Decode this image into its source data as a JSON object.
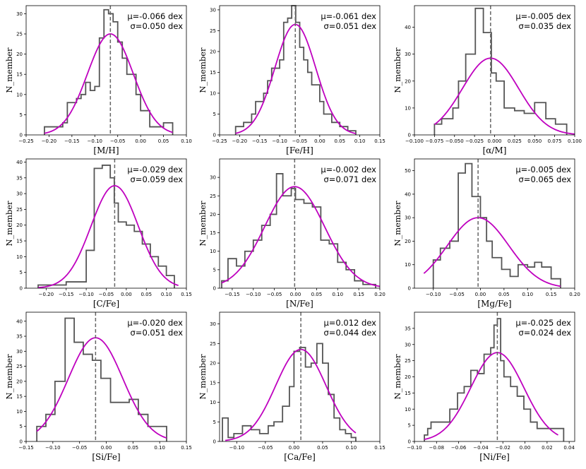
{
  "styles": {
    "hist_color": "#555555",
    "fit_color": "#bf00bf",
    "median_line_color": "#666666"
  },
  "chart_data": [
    {
      "type": "histogram",
      "xlabel": "[M/H]",
      "ylabel": "N_member",
      "mu_text": "μ=-0.066 dex",
      "sigma_text": "σ=0.050 dex",
      "xlim": [
        -0.25,
        0.1
      ],
      "ylim": [
        0,
        32
      ],
      "xticks": [
        -0.25,
        -0.2,
        -0.15,
        -0.1,
        -0.05,
        0.0,
        0.05,
        0.1
      ],
      "xtick_labels": [
        "−0.25",
        "−0.20",
        "−0.15",
        "−0.10",
        "−0.05",
        "0.00",
        "0.05",
        "0.10"
      ],
      "yticks": [
        0,
        5,
        10,
        15,
        20,
        25,
        30
      ],
      "bin_edges": [
        -0.21,
        -0.19,
        -0.17,
        -0.16,
        -0.14,
        -0.13,
        -0.12,
        -0.11,
        -0.1,
        -0.09,
        -0.08,
        -0.07,
        -0.06,
        -0.05,
        -0.04,
        -0.03,
        -0.02,
        -0.01,
        0.0,
        0.02,
        0.03,
        0.05,
        0.07
      ],
      "counts": [
        2,
        2,
        3,
        8,
        9,
        10,
        13,
        11,
        12,
        24,
        31,
        30,
        28,
        23,
        19,
        15,
        15,
        10,
        6,
        2,
        2,
        3
      ],
      "vline": -0.066,
      "gauss": {
        "mu": -0.066,
        "sigma": 0.05,
        "peak": 25.0,
        "xrange": [
          -0.21,
          0.07
        ]
      }
    },
    {
      "type": "histogram",
      "xlabel": "[Fe/H]",
      "ylabel": "N_member",
      "mu_text": "μ=-0.061 dex",
      "sigma_text": "σ=0.051 dex",
      "xlim": [
        -0.25,
        0.15
      ],
      "ylim": [
        0,
        31
      ],
      "xticks": [
        -0.25,
        -0.2,
        -0.15,
        -0.1,
        -0.05,
        0.0,
        0.05,
        0.1,
        0.15
      ],
      "xtick_labels": [
        "−0.25",
        "−0.20",
        "−0.15",
        "−0.10",
        "−0.05",
        "0.00",
        "0.05",
        "0.10",
        "0.15"
      ],
      "yticks": [
        0,
        5,
        10,
        15,
        20,
        25,
        30
      ],
      "bin_edges": [
        -0.21,
        -0.19,
        -0.17,
        -0.16,
        -0.14,
        -0.13,
        -0.12,
        -0.1,
        -0.09,
        -0.08,
        -0.07,
        -0.06,
        -0.05,
        -0.04,
        -0.03,
        -0.02,
        0.0,
        0.01,
        0.03,
        0.05,
        0.07,
        0.09
      ],
      "counts": [
        2,
        3,
        5,
        8,
        10,
        13,
        16,
        18,
        27,
        28,
        31,
        27,
        21,
        18,
        15,
        12,
        8,
        5,
        3,
        2,
        1
      ],
      "vline": -0.061,
      "gauss": {
        "mu": -0.061,
        "sigma": 0.051,
        "peak": 26.5,
        "xrange": [
          -0.21,
          0.09
        ]
      }
    },
    {
      "type": "histogram",
      "xlabel": "[α/M]",
      "ylabel": "N_member",
      "mu_text": "μ=-0.005 dex",
      "sigma_text": "σ=0.035 dex",
      "xlim": [
        -0.1,
        0.1
      ],
      "ylim": [
        0,
        48
      ],
      "xticks": [
        -0.1,
        -0.075,
        -0.05,
        -0.025,
        0.0,
        0.025,
        0.05,
        0.075,
        0.1
      ],
      "xtick_labels": [
        "−0.100",
        "−0.075",
        "−0.050",
        "−0.025",
        "0.000",
        "0.025",
        "0.050",
        "0.075",
        "0.100"
      ],
      "yticks": [
        0,
        10,
        20,
        30,
        40
      ],
      "bin_edges": [
        -0.075,
        -0.066,
        -0.052,
        -0.045,
        -0.036,
        -0.024,
        -0.014,
        -0.004,
        0.002,
        0.012,
        0.025,
        0.037,
        0.05,
        0.064,
        0.076,
        0.09
      ],
      "counts": [
        4,
        6,
        10,
        20,
        30,
        47,
        38,
        23,
        20,
        10,
        9,
        8,
        12,
        6,
        4
      ],
      "vline": -0.005,
      "gauss": {
        "mu": -0.005,
        "sigma": 0.035,
        "peak": 28.5,
        "xrange": [
          -0.075,
          0.1
        ]
      }
    },
    {
      "type": "histogram",
      "xlabel": "[C/Fe]",
      "ylabel": "N_member",
      "mu_text": "μ=-0.029 dex",
      "sigma_text": "σ=0.059 dex",
      "xlim": [
        -0.25,
        0.15
      ],
      "ylim": [
        0,
        41
      ],
      "xticks": [
        -0.2,
        -0.15,
        -0.1,
        -0.05,
        0.0,
        0.05,
        0.1,
        0.15
      ],
      "xtick_labels": [
        "−0.20",
        "−0.15",
        "−0.10",
        "−0.05",
        "0.00",
        "0.05",
        "0.10",
        "0.15"
      ],
      "yticks": [
        0,
        5,
        10,
        15,
        20,
        25,
        30,
        35,
        40
      ],
      "bin_edges": [
        -0.22,
        -0.18,
        -0.15,
        -0.12,
        -0.1,
        -0.08,
        -0.06,
        -0.04,
        -0.03,
        -0.02,
        0.0,
        0.02,
        0.04,
        0.06,
        0.08,
        0.1,
        0.12
      ],
      "counts": [
        1,
        1,
        2,
        2,
        12,
        38,
        39,
        35,
        27,
        21,
        20,
        18,
        14,
        10,
        7,
        4
      ],
      "vline": -0.029,
      "gauss": {
        "mu": -0.029,
        "sigma": 0.059,
        "peak": 32.5,
        "xrange": [
          -0.22,
          0.13
        ]
      }
    },
    {
      "type": "histogram",
      "xlabel": "[N/Fe]",
      "ylabel": "N_member",
      "mu_text": "μ=-0.002 dex",
      "sigma_text": "σ=0.071 dex",
      "xlim": [
        -0.18,
        0.2
      ],
      "ylim": [
        0,
        35
      ],
      "xticks": [
        -0.15,
        -0.1,
        -0.05,
        0.0,
        0.05,
        0.1,
        0.15,
        0.2
      ],
      "xtick_labels": [
        "−0.15",
        "−0.10",
        "−0.05",
        "0.00",
        "0.05",
        "0.10",
        "0.15",
        "0.20"
      ],
      "yticks": [
        0,
        5,
        10,
        15,
        20,
        25,
        30
      ],
      "bin_edges": [
        -0.175,
        -0.16,
        -0.14,
        -0.12,
        -0.1,
        -0.08,
        -0.06,
        -0.045,
        -0.03,
        -0.01,
        0.0,
        0.02,
        0.04,
        0.06,
        0.08,
        0.1,
        0.12,
        0.14,
        0.16,
        0.18,
        0.19
      ],
      "counts": [
        2,
        8,
        6,
        10,
        13,
        17,
        20,
        31,
        25,
        27,
        24,
        23,
        22,
        13,
        12,
        7,
        5,
        2,
        1,
        1
      ],
      "vline": -0.002,
      "gauss": {
        "mu": -0.002,
        "sigma": 0.071,
        "peak": 27.5,
        "xrange": [
          -0.175,
          0.2
        ]
      }
    },
    {
      "type": "histogram",
      "xlabel": "[Mg/Fe]",
      "ylabel": "N_member",
      "mu_text": "μ=-0.005 dex",
      "sigma_text": "σ=0.065 dex",
      "xlim": [
        -0.14,
        0.2
      ],
      "ylim": [
        0,
        55
      ],
      "xticks": [
        -0.1,
        -0.05,
        0.0,
        0.05,
        0.1,
        0.15,
        0.2
      ],
      "xtick_labels": [
        "−0.10",
        "−0.05",
        "0.00",
        "0.05",
        "0.10",
        "0.15",
        "0.20"
      ],
      "yticks": [
        0,
        10,
        20,
        30,
        40,
        50
      ],
      "bin_edges": [
        -0.1,
        -0.085,
        -0.065,
        -0.047,
        -0.032,
        -0.018,
        0.0,
        0.013,
        0.025,
        0.045,
        0.063,
        0.08,
        0.1,
        0.115,
        0.13,
        0.15,
        0.17
      ],
      "counts": [
        12,
        17,
        20,
        49,
        53,
        39,
        30,
        20,
        13,
        8,
        5,
        10,
        9,
        11,
        9,
        4
      ],
      "vline": -0.005,
      "gauss": {
        "mu": -0.005,
        "sigma": 0.065,
        "peak": 30.0,
        "xrange": [
          -0.12,
          0.17
        ]
      }
    },
    {
      "type": "histogram",
      "xlabel": "[Si/Fe]",
      "ylabel": "N_member",
      "mu_text": "μ=-0.020 dex",
      "sigma_text": "σ=0.051 dex",
      "xlim": [
        -0.15,
        0.15
      ],
      "ylim": [
        0,
        43
      ],
      "xticks": [
        -0.15,
        -0.1,
        -0.05,
        0.0,
        0.05,
        0.1,
        0.15
      ],
      "xtick_labels": [
        "−0.15",
        "−0.10",
        "−0.05",
        "0.00",
        "0.05",
        "0.10",
        "0.15"
      ],
      "yticks": [
        0,
        5,
        10,
        15,
        20,
        25,
        30,
        35,
        40
      ],
      "bin_edges": [
        -0.13,
        -0.113,
        -0.096,
        -0.077,
        -0.06,
        -0.043,
        -0.026,
        -0.01,
        0.008,
        0.025,
        0.043,
        0.06,
        0.078,
        0.095,
        0.113
      ],
      "counts": [
        5,
        9,
        20,
        41,
        33,
        29,
        27,
        21,
        13,
        13,
        14,
        9,
        5,
        5
      ],
      "vline": -0.02,
      "gauss": {
        "mu": -0.02,
        "sigma": 0.051,
        "peak": 34.5,
        "xrange": [
          -0.13,
          0.113
        ]
      }
    },
    {
      "type": "histogram",
      "xlabel": "[Ca/Fe]",
      "ylabel": "N_member",
      "mu_text": "μ=0.012 dex",
      "sigma_text": "σ=0.044 dex",
      "xlim": [
        -0.13,
        0.15
      ],
      "ylim": [
        0,
        33
      ],
      "xticks": [
        -0.1,
        -0.05,
        0.0,
        0.05,
        0.1,
        0.15
      ],
      "xtick_labels": [
        "−0.10",
        "−0.05",
        "0.00",
        "0.05",
        "0.10",
        "0.15"
      ],
      "yticks": [
        0,
        5,
        10,
        15,
        20,
        25,
        30
      ],
      "bin_edges": [
        -0.125,
        -0.115,
        -0.105,
        -0.09,
        -0.075,
        -0.06,
        -0.045,
        -0.035,
        -0.02,
        -0.008,
        0.0,
        0.01,
        0.02,
        0.03,
        0.04,
        0.05,
        0.06,
        0.07,
        0.08,
        0.09,
        0.1,
        0.108
      ],
      "counts": [
        6,
        1,
        2,
        4,
        3,
        2,
        4,
        5,
        9,
        14,
        23,
        24,
        19,
        20,
        25,
        20,
        12,
        6,
        3,
        2,
        1
      ],
      "vline": 0.012,
      "gauss": {
        "mu": 0.012,
        "sigma": 0.044,
        "peak": 23.5,
        "xrange": [
          -0.12,
          0.108
        ]
      }
    },
    {
      "type": "histogram",
      "xlabel": "[Ni/Fe]",
      "ylabel": "N_member",
      "mu_text": "μ=-0.025 dex",
      "sigma_text": "σ=0.024 dex",
      "xlim": [
        -0.1,
        0.045
      ],
      "ylim": [
        0,
        40
      ],
      "xticks": [
        -0.1,
        -0.08,
        -0.06,
        -0.04,
        -0.02,
        0.0,
        0.02,
        0.04
      ],
      "xtick_labels": [
        "−0.10",
        "−0.08",
        "−0.06",
        "−0.04",
        "−0.02",
        "0.00",
        "0.02",
        "0.04"
      ],
      "yticks": [
        0,
        5,
        10,
        15,
        20,
        25,
        30,
        35
      ],
      "bin_edges": [
        -0.091,
        -0.088,
        -0.085,
        -0.075,
        -0.068,
        -0.061,
        -0.055,
        -0.049,
        -0.043,
        -0.037,
        -0.031,
        -0.028,
        -0.025,
        -0.022,
        -0.019,
        -0.013,
        -0.007,
        -0.001,
        0.005,
        0.011,
        0.017,
        0.023,
        0.029,
        0.035
      ],
      "counts": [
        2,
        4,
        6,
        6,
        10,
        15,
        17,
        22,
        21,
        27,
        29,
        36,
        38,
        25,
        20,
        17,
        14,
        10,
        6,
        4,
        4,
        4,
        4
      ],
      "vline": -0.025,
      "gauss": {
        "mu": -0.025,
        "sigma": 0.024,
        "peak": 27.5,
        "xrange": [
          -0.091,
          0.03
        ]
      }
    }
  ]
}
